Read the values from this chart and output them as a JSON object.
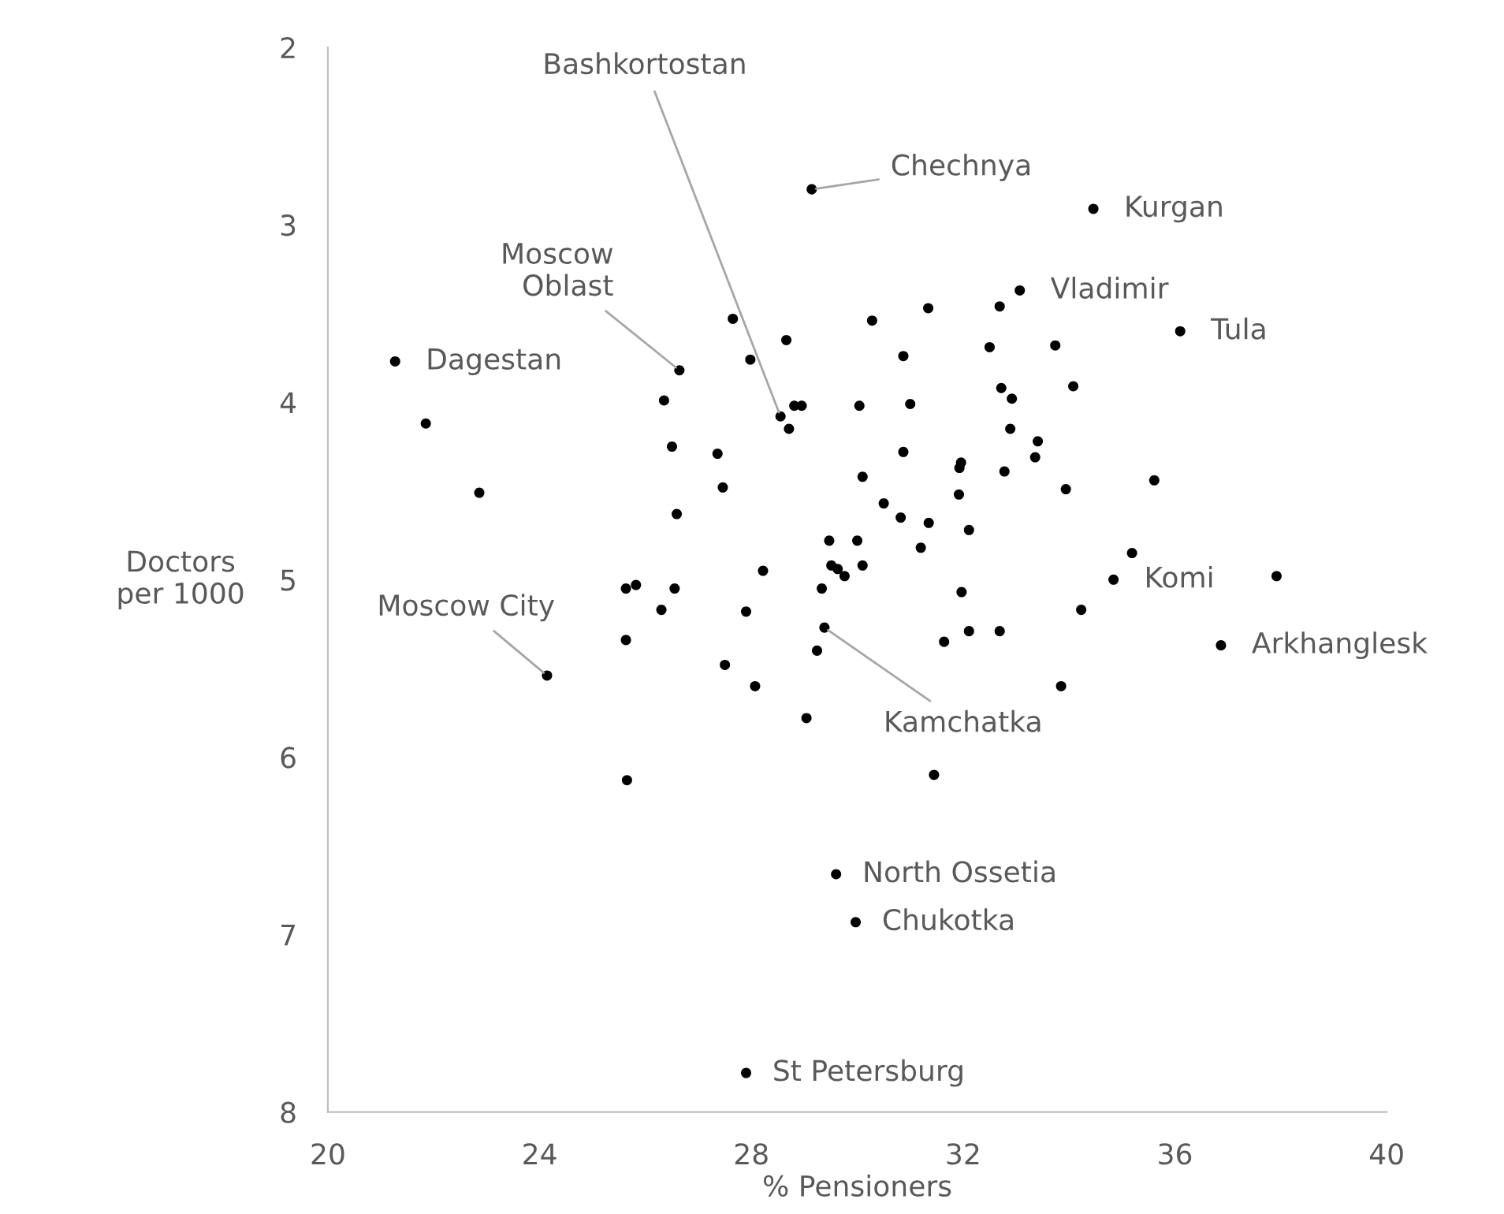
{
  "chart_data": {
    "type": "scatter",
    "xlabel": "% Pensioners",
    "ylabel": "Doctors\nper 1000",
    "xlim": [
      20,
      40
    ],
    "xticks": [
      20,
      24,
      28,
      32,
      36,
      40
    ],
    "ylim": [
      8,
      2
    ],
    "yticks": [
      2,
      3,
      4,
      5,
      6,
      7,
      8
    ],
    "grid": false,
    "legend": false,
    "marker": "circle",
    "series": [
      {
        "color": "#000000",
        "x": [
          21.27,
          21.85,
          22.86,
          26.64,
          27.65,
          28.66,
          27.98,
          26.35,
          28.55,
          28.81,
          28.95,
          28.71,
          30.04,
          30.28,
          26.5,
          27.36,
          27.46,
          26.59,
          30.1,
          30.5,
          29.47,
          30.0,
          29.51,
          29.63,
          29.76,
          30.1,
          28.22,
          29.33,
          25.63,
          25.82,
          26.55,
          26.3,
          27.9,
          25.63,
          29.38,
          29.24,
          27.5,
          28.07,
          29.04,
          24.14,
          33.07,
          32.69,
          31.34,
          36.1,
          30.87,
          32.5,
          33.74,
          34.08,
          32.72,
          32.92,
          31.0,
          32.89,
          33.41,
          33.36,
          30.87,
          31.96,
          31.93,
          32.78,
          35.61,
          33.94,
          31.92,
          30.82,
          31.35,
          32.11,
          31.2,
          35.19,
          34.84,
          37.92,
          31.97,
          34.23,
          36.87,
          31.64,
          32.11,
          32.69,
          33.85,
          29.14,
          34.46,
          31.45,
          25.65,
          29.6,
          29.97,
          27.9
        ],
        "values": [
          3.77,
          4.12,
          4.51,
          3.82,
          3.53,
          3.65,
          3.76,
          3.99,
          4.08,
          4.02,
          4.02,
          4.15,
          4.02,
          3.54,
          4.25,
          4.29,
          4.48,
          4.63,
          4.42,
          4.57,
          4.78,
          4.78,
          4.92,
          4.94,
          4.98,
          4.92,
          4.95,
          5.05,
          5.05,
          5.03,
          5.05,
          5.17,
          5.18,
          5.34,
          5.27,
          5.4,
          5.48,
          5.6,
          5.78,
          5.54,
          3.37,
          3.46,
          3.47,
          3.6,
          3.74,
          3.69,
          3.68,
          3.91,
          3.92,
          3.98,
          4.01,
          4.15,
          4.22,
          4.31,
          4.28,
          4.34,
          4.37,
          4.39,
          4.44,
          4.49,
          4.52,
          4.65,
          4.68,
          4.72,
          4.82,
          4.85,
          5.0,
          4.98,
          5.07,
          5.17,
          5.37,
          5.35,
          5.29,
          5.29,
          5.6,
          2.8,
          2.91,
          6.1,
          6.13,
          6.66,
          6.93,
          7.78
        ]
      }
    ],
    "annotations": [
      {
        "text": "Chechnya",
        "x": 29.14,
        "y": 2.8
      },
      {
        "text": "Bashkortostan",
        "x": 28.55,
        "y": 4.08
      },
      {
        "text": "Kurgan",
        "x": 34.46,
        "y": 2.91
      },
      {
        "text": "Vladimir",
        "x": 33.07,
        "y": 3.37
      },
      {
        "text": "Moscow\nOblast",
        "x": 26.64,
        "y": 3.82
      },
      {
        "text": "Tula",
        "x": 36.1,
        "y": 3.6
      },
      {
        "text": "Dagestan",
        "x": 21.27,
        "y": 3.77
      },
      {
        "text": "Komi",
        "x": 34.84,
        "y": 5.0
      },
      {
        "text": "Moscow City",
        "x": 24.14,
        "y": 5.54
      },
      {
        "text": "Arkhanglesk",
        "x": 36.87,
        "y": 5.37
      },
      {
        "text": "Kamchatka",
        "x": 29.38,
        "y": 5.27
      },
      {
        "text": "North Ossetia",
        "x": 29.6,
        "y": 6.66
      },
      {
        "text": "Chukotka",
        "x": 29.97,
        "y": 6.93
      },
      {
        "text": "St Petersburg",
        "x": 27.9,
        "y": 7.78
      }
    ]
  }
}
